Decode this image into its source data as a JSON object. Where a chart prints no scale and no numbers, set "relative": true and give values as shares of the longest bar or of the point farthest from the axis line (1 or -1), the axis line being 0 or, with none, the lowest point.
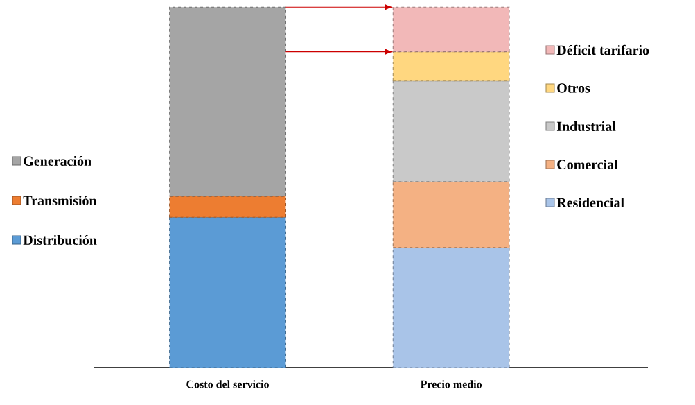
{
  "chart_data": {
    "type": "bar",
    "stacked": true,
    "relative": true,
    "legend": "top left",
    "categories": [
      "Costo del servicio",
      "Precio medio"
    ],
    "series": [
      {
        "name": "Distribución",
        "color": "#5b9bd5",
        "values": [
          0.417,
          null
        ]
      },
      {
        "name": "Transmisión",
        "color": "#ed7d31",
        "values": [
          0.058,
          null
        ]
      },
      {
        "name": "Generación",
        "color": "#a5a5a5",
        "values": [
          0.525,
          null
        ]
      },
      {
        "name": "Residencial",
        "color": "#a9c4e8",
        "values": [
          null,
          0.333
        ]
      },
      {
        "name": "Comercial",
        "color": "#f4b183",
        "values": [
          null,
          0.183
        ]
      },
      {
        "name": "Industrial",
        "color": "#c9c9c9",
        "values": [
          null,
          0.279
        ]
      },
      {
        "name": "Otros",
        "color": "#ffd780",
        "values": [
          null,
          0.081
        ]
      },
      {
        "name": "Déficit tarifario",
        "color": "#f2b8b8",
        "values": [
          null,
          0.124
        ]
      }
    ]
  }
}
